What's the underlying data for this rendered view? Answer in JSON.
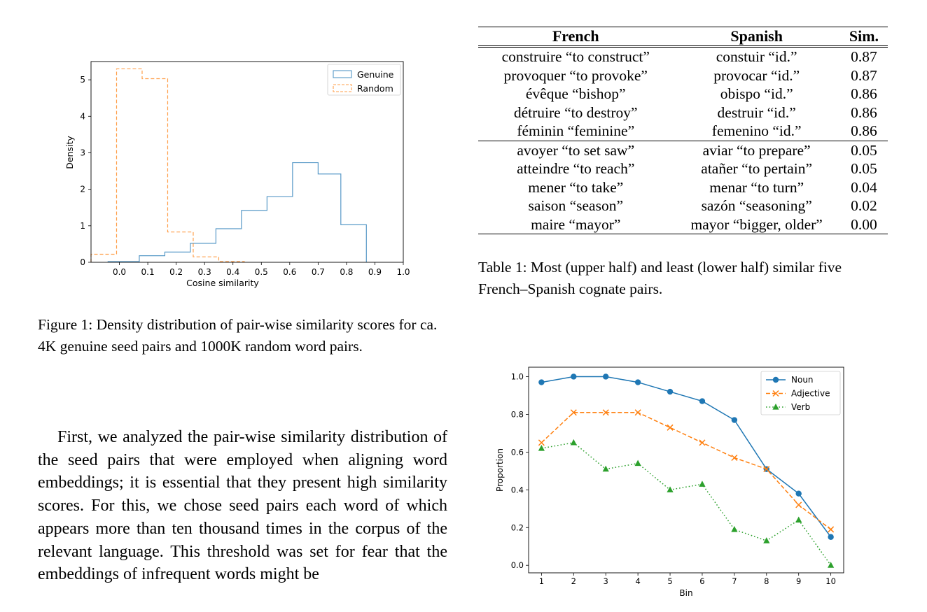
{
  "figure1": {
    "caption": "Figure 1: Density distribution of pair-wise similarity scores for ca. 4K genuine seed pairs and 1000K random word pairs.",
    "chart_data": {
      "type": "histogram",
      "xlabel": "Cosine similarity",
      "ylabel": "Density",
      "xlim": [
        -0.1,
        1.0
      ],
      "ylim": [
        0,
        5.5
      ],
      "xticks": [
        "0.0",
        "0.1",
        "0.2",
        "0.3",
        "0.4",
        "0.5",
        "0.6",
        "0.7",
        "0.8",
        "0.9",
        "1.0"
      ],
      "yticks": [
        "0",
        "1",
        "2",
        "3",
        "4",
        "5"
      ],
      "series": [
        {
          "name": "Genuine",
          "color": "#1f77b4",
          "style": "solid",
          "edges": [
            -0.04,
            0.07,
            0.16,
            0.25,
            0.34,
            0.43,
            0.52,
            0.61,
            0.7,
            0.78,
            0.87
          ],
          "values": [
            0.02,
            0.18,
            0.28,
            0.52,
            0.92,
            1.42,
            1.8,
            2.73,
            2.42,
            1.03
          ]
        },
        {
          "name": "Random",
          "color": "#ff7f0e",
          "style": "dashed",
          "edges": [
            -0.1,
            -0.01,
            0.08,
            0.17,
            0.26,
            0.35,
            0.44
          ],
          "values": [
            0.22,
            5.3,
            5.03,
            0.83,
            0.15,
            0.02
          ]
        }
      ],
      "legend_position": "top-right"
    }
  },
  "table1": {
    "headers": [
      "French",
      "Spanish",
      "Sim."
    ],
    "rows": [
      [
        "construire “to construct”",
        "constuir “id.”",
        "0.87"
      ],
      [
        "provoquer “to provoke”",
        "provocar “id.”",
        "0.87"
      ],
      [
        "évêque “bishop”",
        "obispo “id.”",
        "0.86"
      ],
      [
        "détruire “to destroy”",
        "destruir “id.”",
        "0.86"
      ],
      [
        "féminin “feminine”",
        "femenino “id.”",
        "0.86"
      ],
      [
        "avoyer “to set saw”",
        "aviar “to prepare”",
        "0.05"
      ],
      [
        "atteindre “to reach”",
        "atañer “to pertain”",
        "0.05"
      ],
      [
        "mener “to take”",
        "menar “to turn”",
        "0.04"
      ],
      [
        "saison “season”",
        "sazón “seasoning”",
        "0.02"
      ],
      [
        "maire “mayor”",
        "mayor “bigger, older”",
        "0.00"
      ]
    ],
    "caption": "Table 1: Most (upper half) and least (lower half) similar five French–Spanish cognate pairs."
  },
  "body_text": "First, we analyzed the pair-wise similarity distribution of the seed pairs that were employed when aligning word embeddings; it is essential that they present high similarity scores. For this, we chose seed pairs each word of which appears more than ten thousand times in the corpus of the relevant language. This threshold was set for fear that the embeddings of infrequent words might be",
  "figure2": {
    "chart_data": {
      "type": "line",
      "xlabel": "Bin",
      "ylabel": "Proportion",
      "x": [
        1,
        2,
        3,
        4,
        5,
        6,
        7,
        8,
        9,
        10
      ],
      "xlim": [
        0.6,
        10.4
      ],
      "ylim": [
        -0.04,
        1.05
      ],
      "xticks": [
        "1",
        "2",
        "3",
        "4",
        "5",
        "6",
        "7",
        "8",
        "9",
        "10"
      ],
      "yticks": [
        "0.0",
        "0.2",
        "0.4",
        "0.6",
        "0.8",
        "1.0"
      ],
      "series": [
        {
          "name": "Noun",
          "color": "#1f77b4",
          "style": "solid",
          "marker": "circle",
          "values": [
            0.97,
            1.0,
            1.0,
            0.97,
            0.92,
            0.87,
            0.77,
            0.51,
            0.38,
            0.15
          ]
        },
        {
          "name": "Adjective",
          "color": "#ff7f0e",
          "style": "dashed",
          "marker": "x",
          "values": [
            0.65,
            0.81,
            0.81,
            0.81,
            0.73,
            0.65,
            0.57,
            0.51,
            0.32,
            0.19
          ]
        },
        {
          "name": "Verb",
          "color": "#2ca02c",
          "style": "dotted",
          "marker": "triangle",
          "values": [
            0.62,
            0.65,
            0.51,
            0.54,
            0.4,
            0.43,
            0.19,
            0.13,
            0.24,
            0.0
          ]
        }
      ],
      "legend_position": "top-right"
    }
  }
}
